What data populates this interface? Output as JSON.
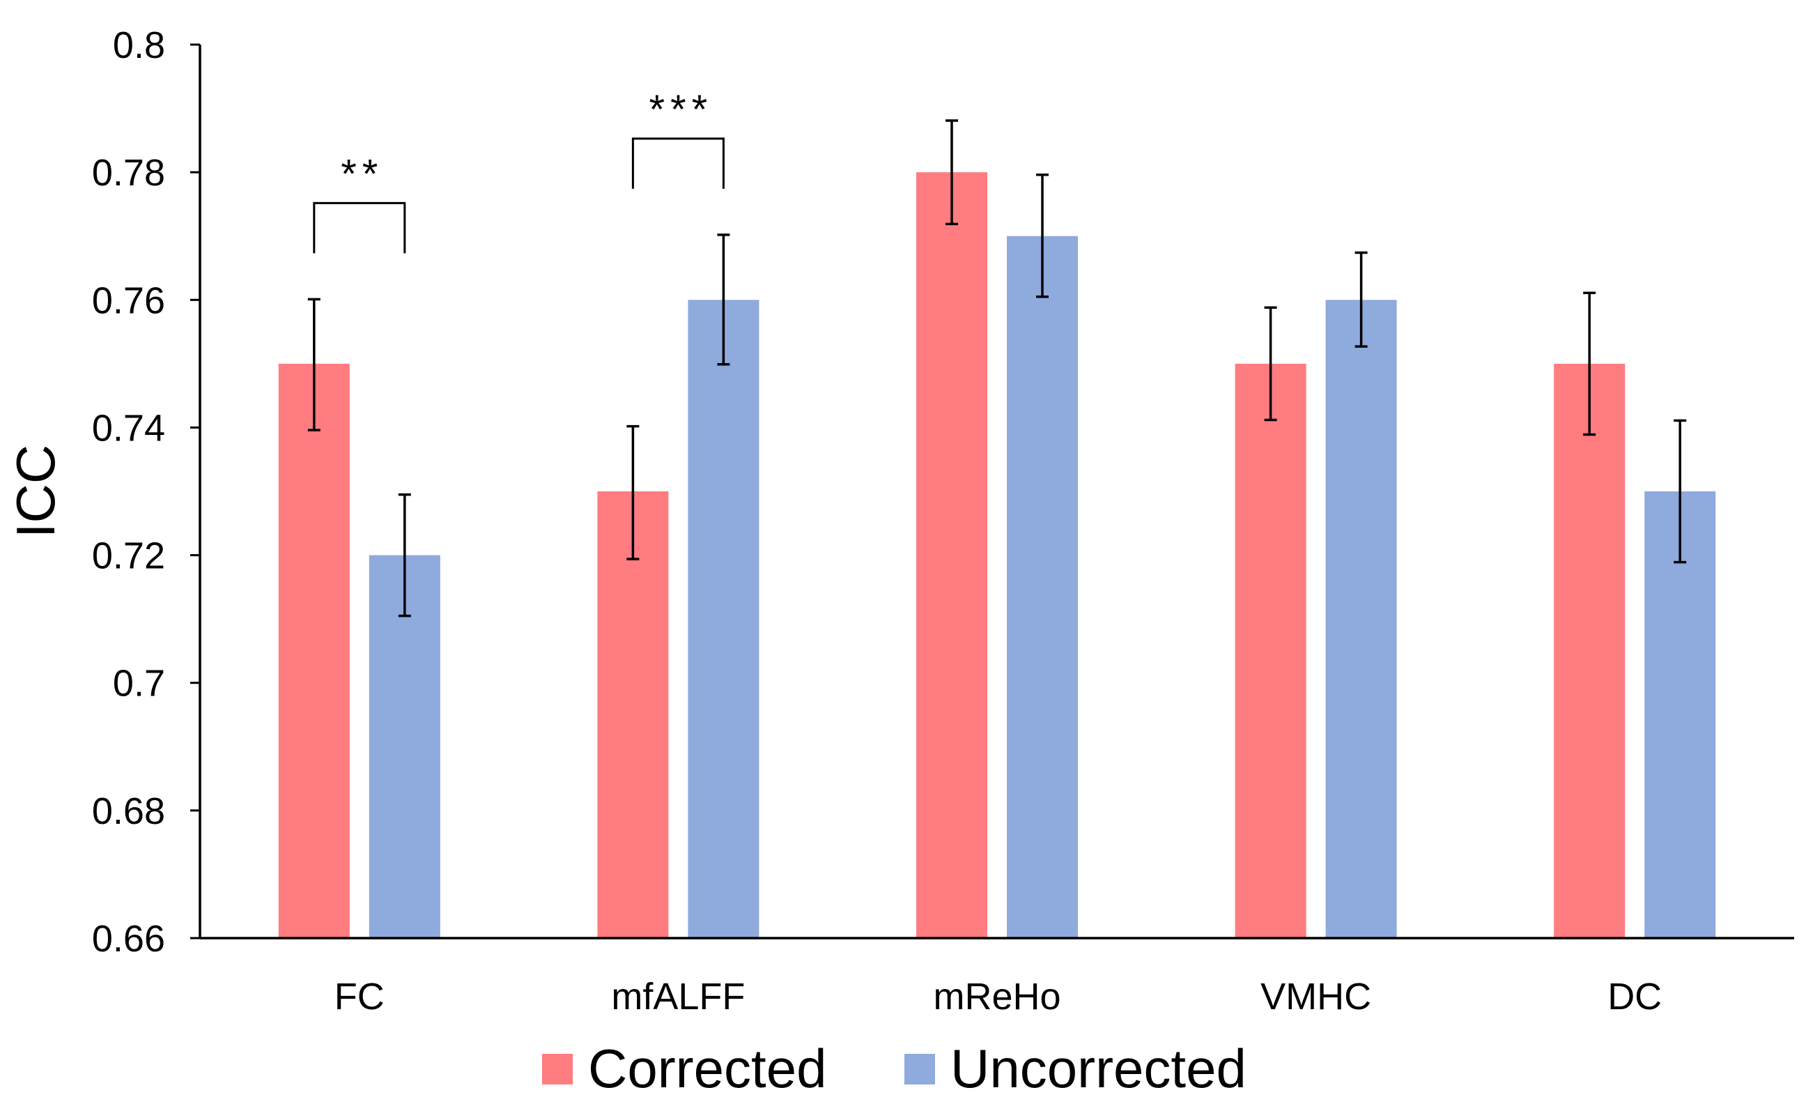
{
  "chart_data": {
    "type": "bar",
    "title": "",
    "xlabel": "",
    "ylabel": "ICC",
    "ylim": [
      0.66,
      0.8
    ],
    "yticks": [
      0.66,
      0.68,
      0.7,
      0.72,
      0.74,
      0.76,
      0.78,
      0.8
    ],
    "ytick_labels": [
      "0.66",
      "0.68",
      "0.7",
      "0.72",
      "0.74",
      "0.76",
      "0.78",
      "0.8"
    ],
    "categories": [
      "FC",
      "mfALFF",
      "mReHo",
      "VMHC",
      "DC"
    ],
    "series": [
      {
        "name": "Corrected",
        "color": "#FF7C80",
        "values": [
          0.75,
          0.73,
          0.78,
          0.75,
          0.75
        ],
        "err_low": [
          0.0104,
          0.0106,
          0.0081,
          0.0088,
          0.0111
        ],
        "err_high": [
          0.0101,
          0.0102,
          0.0081,
          0.0088,
          0.0111
        ]
      },
      {
        "name": "Uncorrected",
        "color": "#8FAADC",
        "values": [
          0.72,
          0.76,
          0.77,
          0.76,
          0.73
        ],
        "err_low": [
          0.0095,
          0.0101,
          0.0095,
          0.0073,
          0.0111
        ],
        "err_high": [
          0.0095,
          0.0102,
          0.0096,
          0.0074,
          0.0111
        ]
      }
    ],
    "significance": [
      {
        "category": "FC",
        "label": "**"
      },
      {
        "category": "mfALFF",
        "label": "***"
      }
    ],
    "grid": false,
    "legend_position": "bottom"
  }
}
